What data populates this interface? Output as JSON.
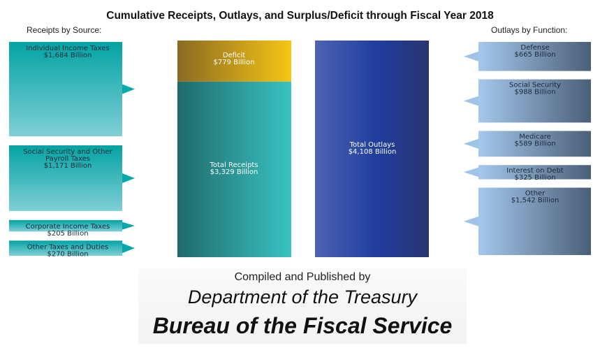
{
  "chart_data": {
    "type": "bar",
    "title": "Cumulative Receipts, Outlays, and Surplus/Deficit through Fiscal Year 2018",
    "receipts_label": "Receipts by Source:",
    "outlays_label": "Outlays by Function:",
    "receipts_by_source": [
      {
        "label": "Individual Income Taxes",
        "value_label": "$1,684 Billion",
        "value": 1684
      },
      {
        "label": "Social Security and Other Payroll Taxes",
        "value_label": "$1,171 Billion",
        "value": 1171
      },
      {
        "label": "Corporate Income Taxes",
        "value_label": "$205 Billion",
        "value": 205
      },
      {
        "label": "Other Taxes and Duties",
        "value_label": "$270 Billion",
        "value": 270
      }
    ],
    "totals": {
      "deficit": {
        "label": "Deficit",
        "value_label": "$779 Billion",
        "value": 779
      },
      "receipts": {
        "label": "Total Receipts",
        "value_label": "$3,329 Billion",
        "value": 3329
      },
      "outlays": {
        "label": "Total Outlays",
        "value_label": "$4,108 Billion",
        "value": 4108
      }
    },
    "outlays_by_function": [
      {
        "label": "Defense",
        "value_label": "$665 Billion",
        "value": 665
      },
      {
        "label": "Social Security",
        "value_label": "$988 Billion",
        "value": 988
      },
      {
        "label": "Medicare",
        "value_label": "$589 Billion",
        "value": 589
      },
      {
        "label": "Interest on Debt",
        "value_label": "$325 Billion",
        "value": 325
      },
      {
        "label": "Other",
        "value_label": "$1,542 Billion",
        "value": 1542
      }
    ],
    "colors": {
      "receipts_box_top": "#03a3a3",
      "receipts_box_bottom": "#7fcfd6",
      "deficit_left": "#8a6a22",
      "deficit_right": "#f6c514",
      "receipts_left": "#1f6a6a",
      "receipts_right": "#39c2c2",
      "outlays_left": "#4d63b3",
      "outlays_mid": "#1f3d9e",
      "outlays_right": "#2a3470",
      "outlay_box_left": "#a5c8ec",
      "outlay_box_right": "#4a5f78"
    }
  },
  "footer": {
    "line1": "Compiled and Published by",
    "line2": "Department of the Treasury",
    "line3": "Bureau of the Fiscal Service"
  }
}
